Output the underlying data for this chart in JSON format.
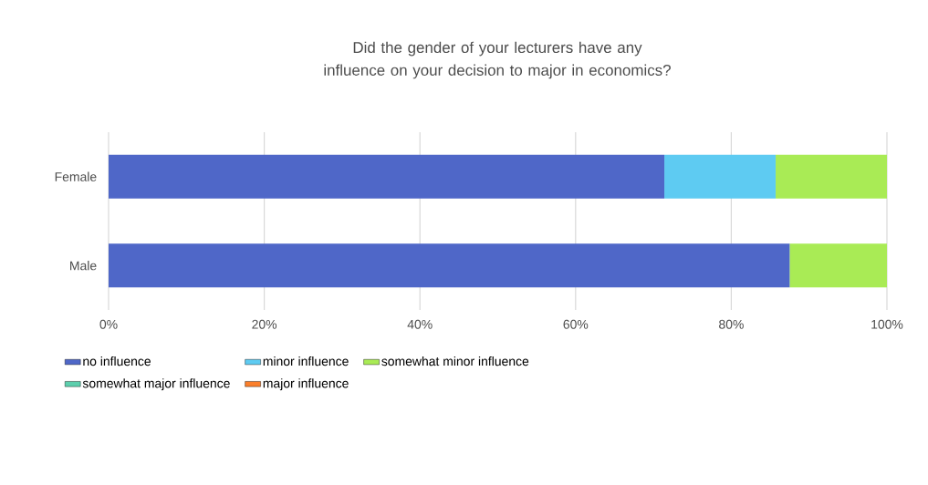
{
  "chart_data": {
    "type": "bar",
    "orientation": "horizontal",
    "stacked": true,
    "title": "Did the gender of your lecturers have any influence on your decision to major in economics?",
    "categories": [
      "Female",
      "Male"
    ],
    "series": [
      {
        "name": "no influence",
        "color": "#4f67c8",
        "values": [
          71.4,
          87.5
        ]
      },
      {
        "name": "minor influence",
        "color": "#5ecbf2",
        "values": [
          14.3,
          0
        ]
      },
      {
        "name": "somewhat minor influence",
        "color": "#a9eb55",
        "values": [
          14.3,
          12.5
        ]
      },
      {
        "name": "somewhat major influence",
        "color": "#5ccfad",
        "values": [
          0,
          0
        ]
      },
      {
        "name": "major influence",
        "color": "#fb7f2b",
        "values": [
          0,
          0
        ]
      }
    ],
    "xlim": [
      0,
      100
    ],
    "xticks": [
      {
        "value": 0,
        "label": "0%"
      },
      {
        "value": 20,
        "label": "20%"
      },
      {
        "value": 40,
        "label": "40%"
      },
      {
        "value": 60,
        "label": "60%"
      },
      {
        "value": 80,
        "label": "80%"
      },
      {
        "value": 100,
        "label": "100%"
      }
    ],
    "grid": "x",
    "legend": "bottom"
  }
}
